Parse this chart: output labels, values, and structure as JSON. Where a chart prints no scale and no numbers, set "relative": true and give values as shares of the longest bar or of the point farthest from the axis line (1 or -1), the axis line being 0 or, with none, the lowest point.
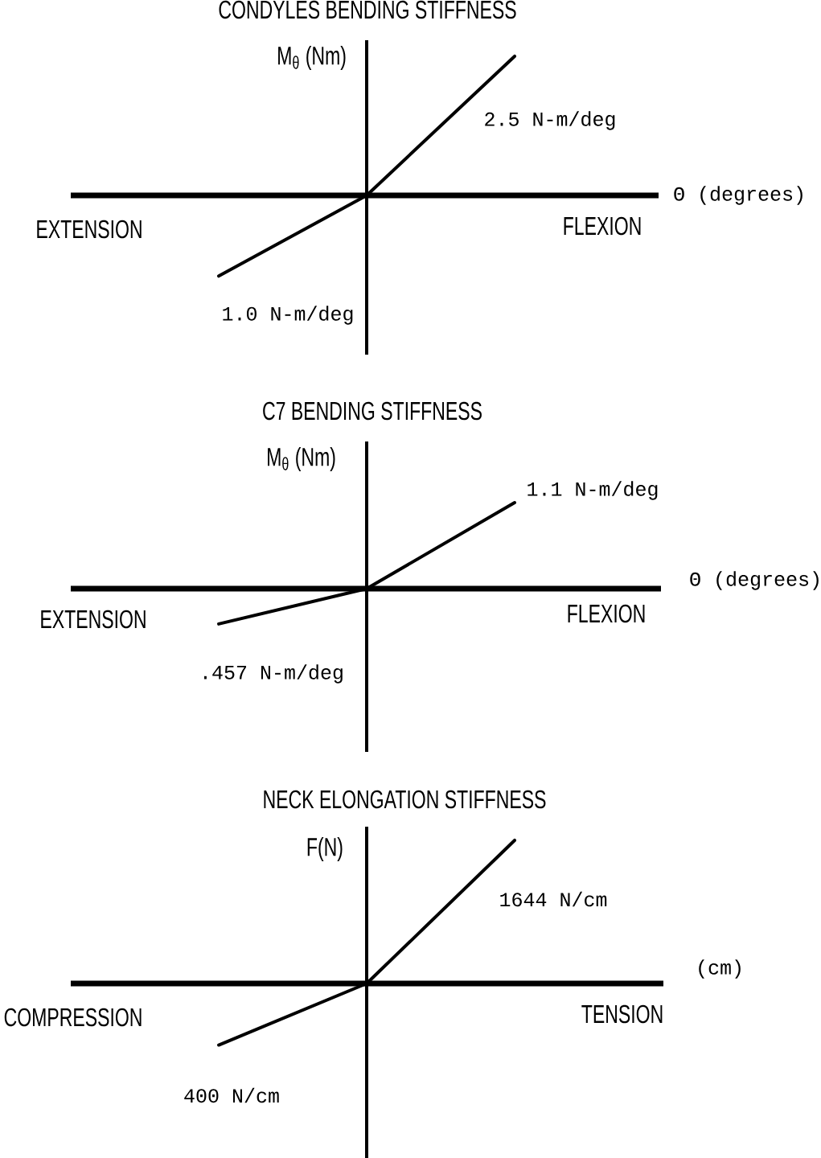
{
  "chart_data": [
    {
      "type": "line",
      "title": "CONDYLES BENDING STIFFNESS",
      "xlabel": "Θ (degrees)",
      "ylabel": "M$_{θ}$ (Nm)",
      "annotations": [
        "EXTENSION",
        "FLEXION",
        "2.5 N-m/deg",
        "1.0 N-m/deg"
      ],
      "categories": [
        null,
        null,
        null
      ],
      "values": [
        -0.58,
        0,
        1
      ],
      "relative": true,
      "color": "#000000"
    },
    {
      "type": "line",
      "title": "C7 BENDING STIFFNESS",
      "xlabel": "Θ (degrees)",
      "ylabel": "M$_{θ}$ (Nm)",
      "annotations": [
        "EXTENSION",
        "FLEXION",
        "1.1 N-m/deg",
        ".457 N-m/deg"
      ],
      "categories": [
        null,
        null,
        null
      ],
      "values": [
        -0.41,
        0,
        1
      ],
      "relative": true,
      "color": "#000000"
    },
    {
      "type": "line",
      "title": "NECK ELONGATION STIFFNESS",
      "xlabel": "(cm)",
      "ylabel": "F(N)",
      "annotations": [
        "COMPRESSION",
        "TENSION",
        "1644 N/cm",
        "400 N/cm"
      ],
      "categories": [
        null,
        null,
        null
      ],
      "values": [
        -0.43,
        0,
        1
      ],
      "relative": true,
      "color": "#000000"
    }
  ]
}
